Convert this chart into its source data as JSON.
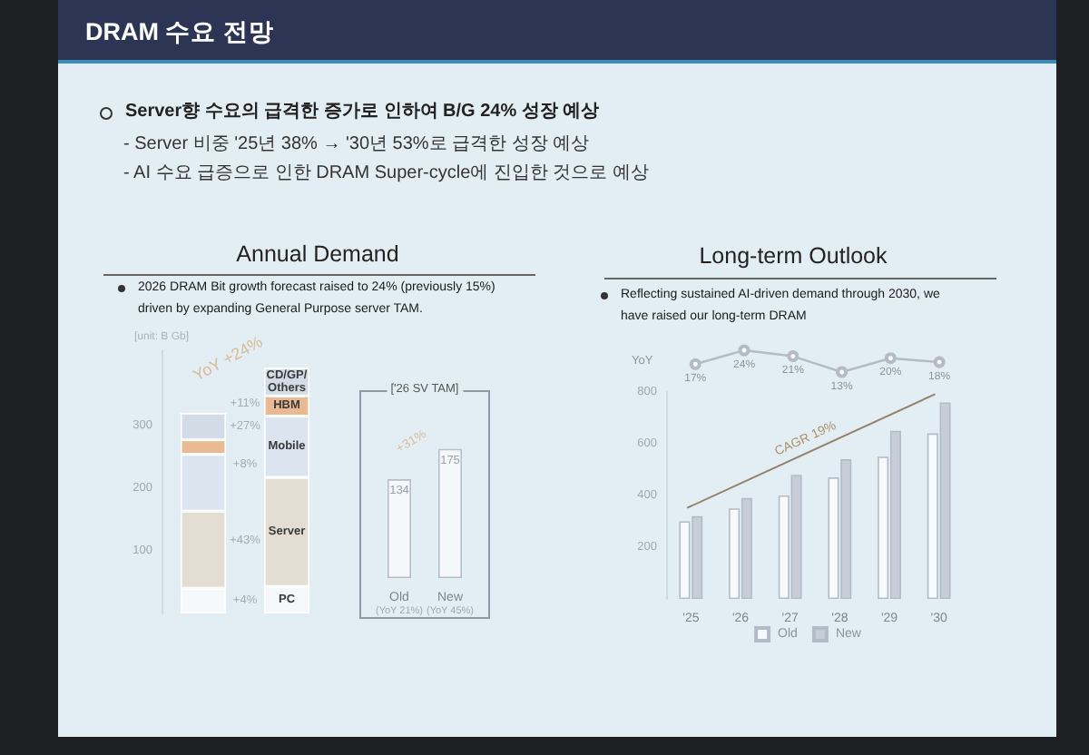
{
  "chart_data": [
    {
      "type": "other",
      "title": "DRAM 수요 전망",
      "annotations": [
        "Server향 수요의 급격한 증가로 인하여 B/G 24% 성장 예상",
        "- Server 비중 '25년 38% → '30년 53%로 급격한 성장 예상",
        "- AI 수요 급증으로 인한 DRAM Super-cycle에 진입한 것으로 예상"
      ]
    },
    {
      "type": "bar",
      "title": "Annual Demand",
      "subtitle": "2026 DRAM Bit growth forecast raised to 24% (previously 15%) driven by expanding General Purpose server TAM.",
      "ylabel": "[unit: B Gb]",
      "categories": [
        null,
        null
      ],
      "stacked": true,
      "series": [
        {
          "name": "PC",
          "color": "#f6f9fc",
          "values": [
            40,
            43
          ]
        },
        {
          "name": "Server",
          "color": "#e4ddd4",
          "values": [
            123,
            174
          ]
        },
        {
          "name": "Mobile",
          "color": "#dce4ef",
          "values": [
            91,
            98
          ]
        },
        {
          "name": "HBM",
          "color": "#e8b993",
          "values": [
            23,
            32
          ]
        },
        {
          "name": "CD/GP/Others",
          "color": "#d3dbe7",
          "values": [
            43,
            45
          ]
        }
      ],
      "ylim": [
        0,
        420
      ],
      "yticks": [
        100,
        200,
        300
      ],
      "annotations": [
        "YoY +24%",
        "+11%",
        "+27%",
        "+8%",
        "+43%",
        "+4%"
      ]
    },
    {
      "type": "bar",
      "title": "['26 SV TAM]",
      "categories": [
        "Old\n(YoY 21%)",
        "New\n(YoY 45%)"
      ],
      "values": [
        134,
        175
      ],
      "color": "#f4f8fb",
      "data_labels": true,
      "annotations": [
        "+31%"
      ]
    },
    {
      "type": "line",
      "title": "Long-term Outlook",
      "subtitle": "Reflecting sustained AI-driven demand through 2030, we have raised our long-term DRAM",
      "ylabel": "YoY",
      "categories": [
        null,
        null,
        null,
        null,
        null,
        null
      ],
      "values": [
        17,
        24,
        21,
        13,
        20,
        18
      ],
      "value_labels": [
        "17%",
        "24%",
        "21%",
        "13%",
        "20%",
        "18%"
      ],
      "color": "#b4bbc5",
      "marker": "circle"
    },
    {
      "type": "bar",
      "categories": [
        "'25",
        "'26",
        "'27",
        "'28",
        "'29",
        "'30"
      ],
      "series": [
        {
          "name": "Old",
          "color": "#f7fafc",
          "values": [
            300,
            350,
            400,
            470,
            550,
            640
          ]
        },
        {
          "name": "New",
          "color": "#c8ced8",
          "values": [
            320,
            390,
            480,
            540,
            650,
            760
          ]
        }
      ],
      "ylim": [
        0,
        800
      ],
      "yticks": [
        200,
        400,
        600,
        800
      ],
      "legend": "bottom",
      "annotations": [
        "CAGR 19%"
      ]
    }
  ]
}
